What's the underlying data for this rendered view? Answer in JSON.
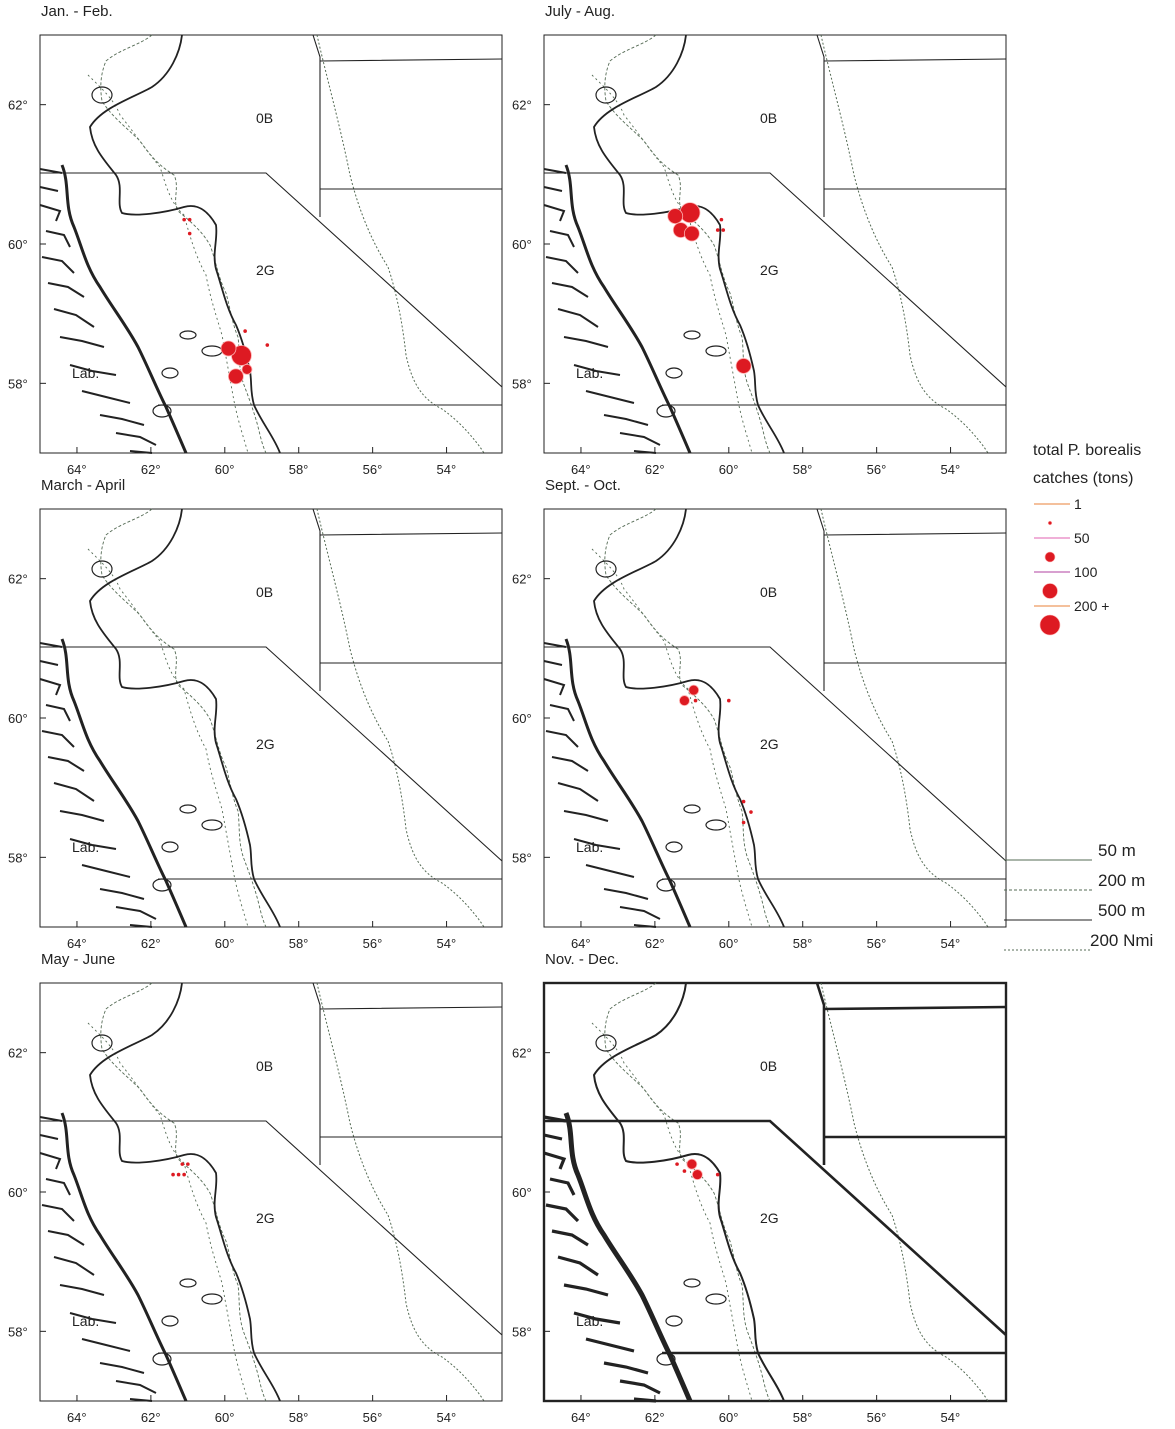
{
  "figure": {
    "panels": [
      {
        "title": "Jan. - Feb.",
        "heavy": false,
        "points": [
          {
            "lon": -61.1,
            "lat": 60.35,
            "c": 1
          },
          {
            "lon": -60.95,
            "lat": 60.35,
            "c": 1
          },
          {
            "lon": -60.95,
            "lat": 60.15,
            "c": 1
          },
          {
            "lon": -59.55,
            "lat": 58.4,
            "c": 200
          },
          {
            "lon": -59.9,
            "lat": 58.5,
            "c": 100
          },
          {
            "lon": -59.7,
            "lat": 58.1,
            "c": 100
          },
          {
            "lon": -59.4,
            "lat": 58.2,
            "c": 50
          },
          {
            "lon": -59.45,
            "lat": 58.75,
            "c": 1
          },
          {
            "lon": -58.85,
            "lat": 58.55,
            "c": 1
          }
        ]
      },
      {
        "title": "July - Aug.",
        "heavy": false,
        "points": [
          {
            "lon": -61.05,
            "lat": 60.45,
            "c": 200
          },
          {
            "lon": -61.45,
            "lat": 60.4,
            "c": 100
          },
          {
            "lon": -61.3,
            "lat": 60.2,
            "c": 100
          },
          {
            "lon": -61.0,
            "lat": 60.15,
            "c": 100
          },
          {
            "lon": -60.2,
            "lat": 60.35,
            "c": 1
          },
          {
            "lon": -60.3,
            "lat": 60.2,
            "c": 1
          },
          {
            "lon": -60.15,
            "lat": 60.2,
            "c": 1
          },
          {
            "lon": -59.6,
            "lat": 58.25,
            "c": 100
          }
        ]
      },
      {
        "title": "March - April",
        "heavy": false,
        "points": []
      },
      {
        "title": "Sept. - Oct.",
        "heavy": false,
        "points": [
          {
            "lon": -60.95,
            "lat": 60.4,
            "c": 50
          },
          {
            "lon": -61.2,
            "lat": 60.25,
            "c": 50
          },
          {
            "lon": -60.9,
            "lat": 60.25,
            "c": 1
          },
          {
            "lon": -60.0,
            "lat": 60.25,
            "c": 1
          },
          {
            "lon": -59.6,
            "lat": 58.8,
            "c": 1
          },
          {
            "lon": -59.4,
            "lat": 58.65,
            "c": 1
          },
          {
            "lon": -59.6,
            "lat": 58.5,
            "c": 1
          }
        ]
      },
      {
        "title": "May - June",
        "heavy": false,
        "points": [
          {
            "lon": -61.15,
            "lat": 60.4,
            "c": 1
          },
          {
            "lon": -61.0,
            "lat": 60.4,
            "c": 1
          },
          {
            "lon": -61.4,
            "lat": 60.25,
            "c": 1
          },
          {
            "lon": -61.25,
            "lat": 60.25,
            "c": 1
          },
          {
            "lon": -61.1,
            "lat": 60.25,
            "c": 1
          }
        ]
      },
      {
        "title": "Nov. - Dec.",
        "heavy": true,
        "points": [
          {
            "lon": -61.0,
            "lat": 60.4,
            "c": 50
          },
          {
            "lon": -60.85,
            "lat": 60.25,
            "c": 50
          },
          {
            "lon": -61.2,
            "lat": 60.3,
            "c": 1
          },
          {
            "lon": -61.4,
            "lat": 60.4,
            "c": 1
          },
          {
            "lon": -60.3,
            "lat": 60.25,
            "c": 1
          }
        ]
      }
    ],
    "region_labels": {
      "north": "0B",
      "south": "2G",
      "land": "Lab."
    },
    "lat_ticks": [
      "62°",
      "60°",
      "58°"
    ],
    "lon_ticks": [
      "64°",
      "62°",
      "60°",
      "58°",
      "56°",
      "54°"
    ],
    "lon_range": [
      -65,
      -52.5
    ],
    "lat_range": [
      57.0,
      63.0
    ]
  },
  "legend": {
    "title_line1": "total P. borealis",
    "title_line2": "catches (tons)",
    "classes": [
      {
        "label": "1",
        "tons": 1
      },
      {
        "label": "50",
        "tons": 50
      },
      {
        "label": "100",
        "tons": 100
      },
      {
        "label": "200 +",
        "tons": 200
      }
    ]
  },
  "depth_legend": {
    "items": [
      "50 m",
      "200 m",
      "500 m",
      "200 Nmi"
    ]
  },
  "colors": {
    "catch_fill": "#dd1a22",
    "catch_stroke": "#ffb0b0",
    "line": "#222222",
    "isobath": "#556b55"
  }
}
